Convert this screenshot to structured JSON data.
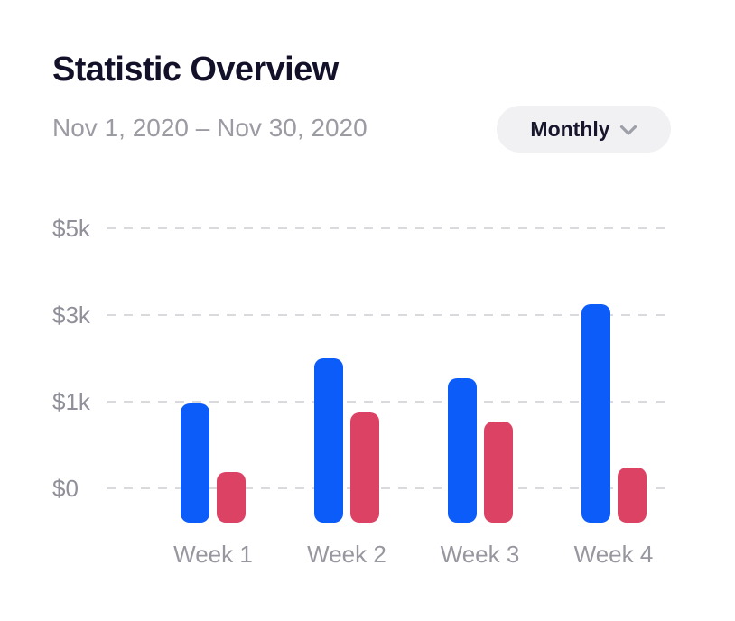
{
  "header": {
    "title": "Statistic Overview",
    "date_range": "Nov 1, 2020 – Nov 30, 2020",
    "period_selector": {
      "label": "Monthly",
      "icon": "chevron-down-icon"
    }
  },
  "chart_data": {
    "type": "bar",
    "title": "Statistic Overview",
    "subtitle": "Nov 1, 2020 – Nov 30, 2020",
    "unit": "USD",
    "categories": [
      "Week 1",
      "Week 2",
      "Week 3",
      "Week 4"
    ],
    "series": [
      {
        "name": "series-blue",
        "color": "#0c5cfa",
        "values": [
          980,
          2000,
          1550,
          3250
        ]
      },
      {
        "name": "series-red",
        "color": "#dc4263",
        "values": [
          190,
          875,
          770,
          240
        ]
      }
    ],
    "y_axis": {
      "ticks_top_to_bottom": [
        {
          "label": "$5k",
          "value": 5000
        },
        {
          "label": "$3k",
          "value": 3000
        },
        {
          "label": "$1k",
          "value": 1000
        },
        {
          "label": "$0",
          "value": 0
        }
      ],
      "scale_note": "ticks evenly spaced on screen"
    },
    "xlabel": "",
    "ylabel": "",
    "grid": "horizontal-dashed",
    "legend": "none"
  },
  "colors": {
    "background": "#ffffff",
    "title_text": "#131129",
    "muted_text": "#9b9ba3",
    "axis_text": "#94949d",
    "gridline": "#d9d9de",
    "bar_blue": "#0c5cfa",
    "bar_red": "#dc4263",
    "pill_background": "#f1f1f3",
    "pill_text": "#17162d"
  }
}
